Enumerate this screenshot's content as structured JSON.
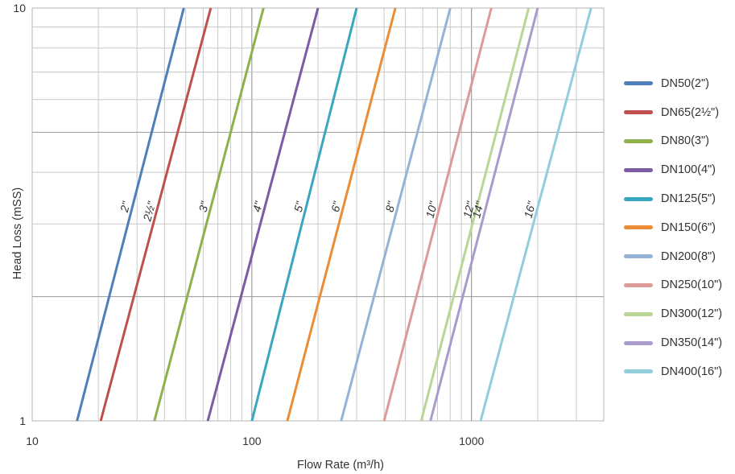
{
  "chart_data": {
    "type": "line",
    "xscale": "log",
    "yscale": "log",
    "xlim": [
      10,
      4000
    ],
    "ylim": [
      1,
      10
    ],
    "xlabel": "Flow Rate (m³/h)",
    "ylabel": "Head Loss (mSS)",
    "x_ticks": [
      "10",
      "100",
      "1000"
    ],
    "y_ticks": [
      "1",
      "10"
    ],
    "grid": true,
    "legend_position": "right",
    "series": [
      {
        "name": "DN50(2\")",
        "tag": "2\"",
        "color": "#4f7fb8",
        "x": [
          16,
          49
        ],
        "y": [
          1,
          10
        ]
      },
      {
        "name": "DN65(2½\")",
        "tag": "2½\"",
        "color": "#c0504d",
        "x": [
          20.5,
          65
        ],
        "y": [
          1,
          10
        ]
      },
      {
        "name": "DN80(3\")",
        "tag": "3\"",
        "color": "#8fb04a",
        "x": [
          36,
          113
        ],
        "y": [
          1,
          10
        ]
      },
      {
        "name": "DN100(4\")",
        "tag": "4\"",
        "color": "#7c5ba4",
        "x": [
          63,
          200
        ],
        "y": [
          1,
          10
        ]
      },
      {
        "name": "DN125(5\")",
        "tag": "5\"",
        "color": "#3aa7c0",
        "x": [
          100,
          300
        ],
        "y": [
          1,
          10
        ]
      },
      {
        "name": "DN150(6\")",
        "tag": "6\"",
        "color": "#ec8c37",
        "x": [
          145,
          450
        ],
        "y": [
          1,
          10
        ]
      },
      {
        "name": "DN200(8\")",
        "tag": "8\"",
        "color": "#95b3d7",
        "x": [
          255,
          800
        ],
        "y": [
          1,
          10
        ]
      },
      {
        "name": "DN250(10\")",
        "tag": "10\"",
        "color": "#dc9a99",
        "x": [
          400,
          1230
        ],
        "y": [
          1,
          10
        ]
      },
      {
        "name": "DN300(12\")",
        "tag": "12\"",
        "color": "#b9d597",
        "x": [
          590,
          1820
        ],
        "y": [
          1,
          10
        ]
      },
      {
        "name": "DN350(14\")",
        "tag": "14\"",
        "color": "#a99bcc",
        "x": [
          650,
          2000
        ],
        "y": [
          1,
          10
        ]
      },
      {
        "name": "DN400(16\")",
        "tag": "16\"",
        "color": "#92cddc",
        "x": [
          1100,
          3500
        ],
        "y": [
          1,
          10
        ]
      }
    ]
  }
}
